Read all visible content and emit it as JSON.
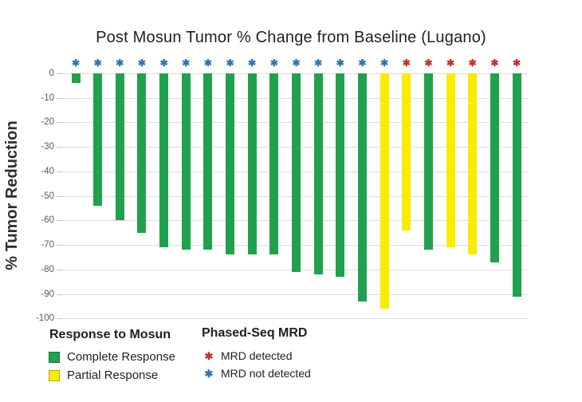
{
  "title": "Post Mosun Tumor % Change from Baseline (Lugano)",
  "colors": {
    "complete_response": "#21a14e",
    "partial_response": "#f9ec00",
    "mrd_detected": "#c3342f",
    "mrd_not_detected": "#2e75b6",
    "gridline": "#dcdcdc",
    "tick_text": "#595959",
    "title_text": "#1f1f1f"
  },
  "chart_data": {
    "type": "bar",
    "title": "Post Mosun Tumor % Change from Baseline (Lugano)",
    "xlabel": "",
    "ylabel": "% Tumor Reduction",
    "ylim": [
      -100,
      0
    ],
    "yticks": [
      0,
      -10,
      -20,
      -30,
      -40,
      -50,
      -60,
      -70,
      -80,
      -90,
      -100
    ],
    "grid": true,
    "legend_position": "bottom",
    "bars": [
      {
        "value": -4,
        "response": "Complete Response",
        "mrd": "MRD not detected"
      },
      {
        "value": -54,
        "response": "Complete Response",
        "mrd": "MRD not detected"
      },
      {
        "value": -60,
        "response": "Complete Response",
        "mrd": "MRD not detected"
      },
      {
        "value": -65,
        "response": "Complete Response",
        "mrd": "MRD not detected"
      },
      {
        "value": -71,
        "response": "Complete Response",
        "mrd": "MRD not detected"
      },
      {
        "value": -72,
        "response": "Complete Response",
        "mrd": "MRD not detected"
      },
      {
        "value": -72,
        "response": "Complete Response",
        "mrd": "MRD not detected"
      },
      {
        "value": -74,
        "response": "Complete Response",
        "mrd": "MRD not detected"
      },
      {
        "value": -74,
        "response": "Complete Response",
        "mrd": "MRD not detected"
      },
      {
        "value": -74,
        "response": "Complete Response",
        "mrd": "MRD not detected"
      },
      {
        "value": -81,
        "response": "Complete Response",
        "mrd": "MRD not detected"
      },
      {
        "value": -82,
        "response": "Complete Response",
        "mrd": "MRD not detected"
      },
      {
        "value": -83,
        "response": "Complete Response",
        "mrd": "MRD not detected"
      },
      {
        "value": -93,
        "response": "Complete Response",
        "mrd": "MRD not detected"
      },
      {
        "value": -96,
        "response": "Partial Response",
        "mrd": "MRD not detected"
      },
      {
        "value": -64,
        "response": "Partial Response",
        "mrd": "MRD detected"
      },
      {
        "value": -72,
        "response": "Complete Response",
        "mrd": "MRD detected"
      },
      {
        "value": -71,
        "response": "Partial Response",
        "mrd": "MRD detected"
      },
      {
        "value": -74,
        "response": "Partial Response",
        "mrd": "MRD detected"
      },
      {
        "value": -77,
        "response": "Complete Response",
        "mrd": "MRD detected"
      },
      {
        "value": -91,
        "response": "Complete Response",
        "mrd": "MRD detected"
      }
    ]
  },
  "legend": {
    "response_title": "Response to Mosun",
    "complete_label": "Complete Response",
    "partial_label": "Partial Response",
    "mrd_title": "Phased-Seq MRD",
    "detected_label": "MRD detected",
    "not_detected_label": "MRD not detected",
    "star_symbol": "✱"
  }
}
